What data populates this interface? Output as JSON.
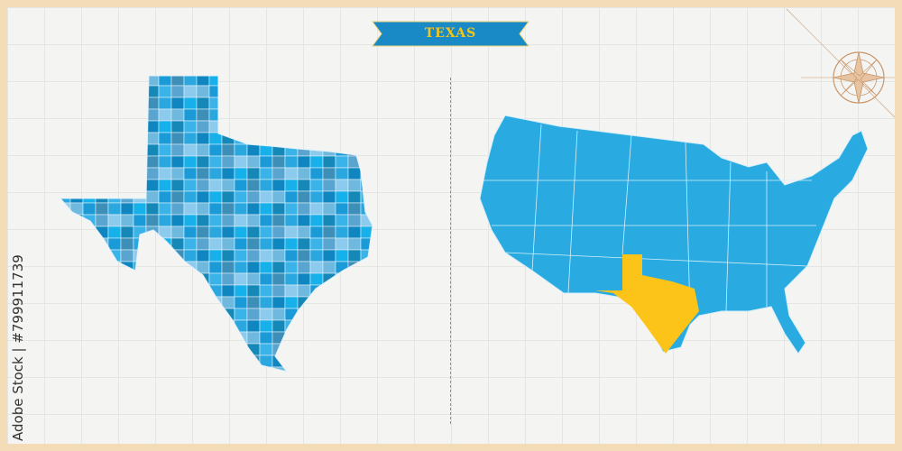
{
  "title": "TEXAS",
  "watermark": "Adobe Stock",
  "credit": "Adobe Stock | #799911739",
  "maps": {
    "left": {
      "subject": "Texas counties",
      "palette": [
        "#1a9ad6",
        "#0f86c0",
        "#3ab4e8",
        "#6fb8de",
        "#2aa7df",
        "#1588b8",
        "#8ccbee",
        "#3d8fb8",
        "#16b0ea",
        "#5aa5d0"
      ]
    },
    "right": {
      "subject": "United States",
      "base_color": "#29abe2",
      "highlight_state": "Texas",
      "highlight_color": "#fcc419"
    }
  },
  "colors": {
    "border": "#f5dcb9",
    "banner": "#1a8ac7",
    "banner_text": "#f5c518",
    "divider": "#b9835a",
    "compass": "#c8956b"
  }
}
